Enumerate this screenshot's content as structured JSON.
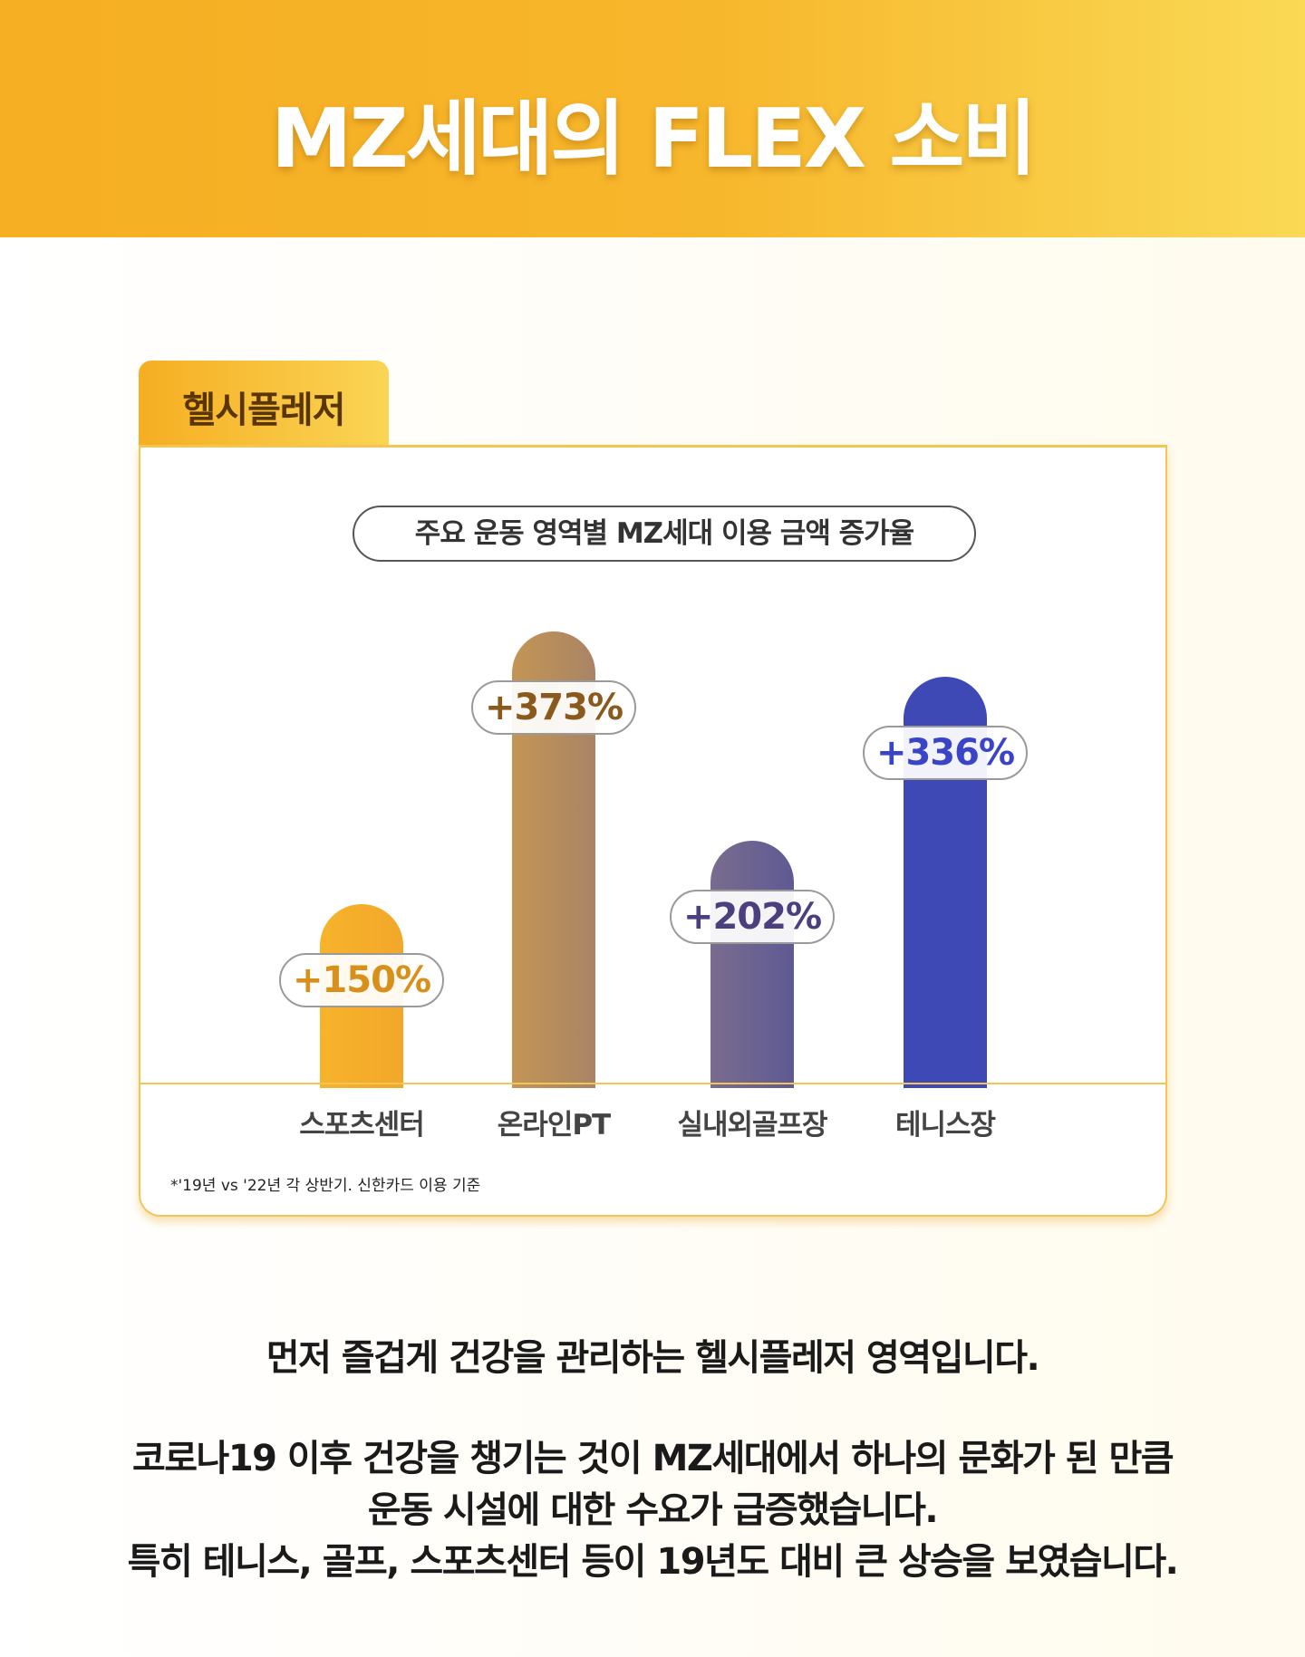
{
  "header": {
    "title": "MZ세대의 FLEX 소비"
  },
  "section": {
    "tab_label": "헬시플레저"
  },
  "chart_data": {
    "type": "bar",
    "title": "주요 운동 영역별 MZ세대 이용 금액 증가율",
    "categories": [
      "스포츠센터",
      "온라인PT",
      "실내외골프장",
      "테니스장"
    ],
    "values": [
      150,
      373,
      202,
      336
    ],
    "value_labels": [
      "+150%",
      "+373%",
      "+202%",
      "+336%"
    ],
    "label_colors": [
      "#d9901a",
      "#8a5a1d",
      "#4c3f7e",
      "#3a44c6"
    ],
    "ylim": [
      0,
      380
    ],
    "footnote": "*'19년 vs '22년 각 상반기.  신한카드 이용 기준"
  },
  "body": {
    "paragraph1": "먼저 즐겁게 건강을 관리하는 헬시플레저 영역입니다.",
    "paragraph2_line1": "코로나19 이후 건강을 챙기는 것이 MZ세대에서 하나의 문화가 된 만큼",
    "paragraph2_line2": "운동 시설에 대한 수요가 급증했습니다.",
    "paragraph2_line3": "특히 테니스, 골프, 스포츠센터 등이 19년도 대비 큰 상승을 보였습니다."
  }
}
